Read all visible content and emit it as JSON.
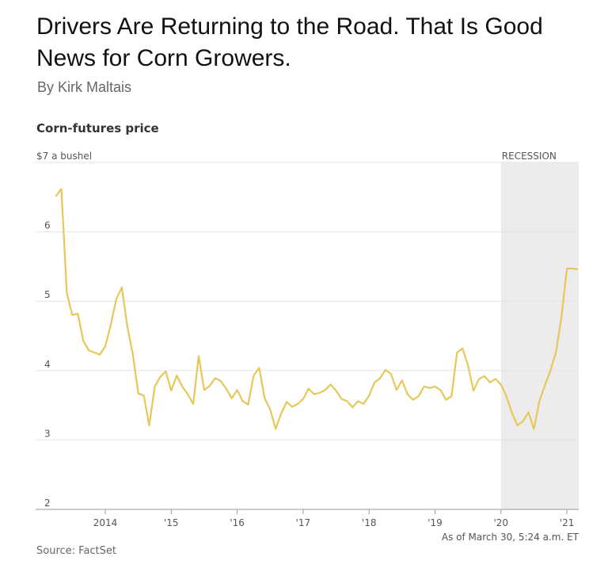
{
  "article": {
    "title": "Drivers Are Returning to the Road. That Is Good News for Corn Growers.",
    "byline": "By Kirk Maltais"
  },
  "chart_data": {
    "type": "line",
    "title": "Corn-futures price",
    "ylabel": "$7 a bushel",
    "ylim": [
      2,
      7
    ],
    "yticks": [
      "2",
      "3",
      "4",
      "5",
      "6",
      "$7 a bushel"
    ],
    "xticks": [
      "2014",
      "'15",
      "'16",
      "'17",
      "'18",
      "'19",
      "'20",
      "'21"
    ],
    "grid": true,
    "line_color": "#e6c85a",
    "shaded_region": {
      "label": "RECESSION",
      "from": "2020-02",
      "to": "2021-03",
      "color": "#ececec"
    },
    "x": [
      "2013-04",
      "2013-05",
      "2013-06",
      "2013-07",
      "2013-08",
      "2013-09",
      "2013-10",
      "2013-11",
      "2013-12",
      "2014-01",
      "2014-02",
      "2014-03",
      "2014-04",
      "2014-05",
      "2014-06",
      "2014-07",
      "2014-08",
      "2014-09",
      "2014-10",
      "2014-11",
      "2014-12",
      "2015-01",
      "2015-02",
      "2015-03",
      "2015-04",
      "2015-05",
      "2015-06",
      "2015-07",
      "2015-08",
      "2015-09",
      "2015-10",
      "2015-11",
      "2015-12",
      "2016-01",
      "2016-02",
      "2016-03",
      "2016-04",
      "2016-05",
      "2016-06",
      "2016-07",
      "2016-08",
      "2016-09",
      "2016-10",
      "2016-11",
      "2016-12",
      "2017-01",
      "2017-02",
      "2017-03",
      "2017-04",
      "2017-05",
      "2017-06",
      "2017-07",
      "2017-08",
      "2017-09",
      "2017-10",
      "2017-11",
      "2017-12",
      "2018-01",
      "2018-02",
      "2018-03",
      "2018-04",
      "2018-05",
      "2018-06",
      "2018-07",
      "2018-08",
      "2018-09",
      "2018-10",
      "2018-11",
      "2018-12",
      "2019-01",
      "2019-02",
      "2019-03",
      "2019-04",
      "2019-05",
      "2019-06",
      "2019-07",
      "2019-08",
      "2019-09",
      "2019-10",
      "2019-11",
      "2019-12",
      "2020-01",
      "2020-02",
      "2020-03",
      "2020-04",
      "2020-05",
      "2020-06",
      "2020-07",
      "2020-08",
      "2020-09",
      "2020-10",
      "2020-11",
      "2020-12",
      "2021-01",
      "2021-02",
      "2021-03"
    ],
    "values": [
      6.51,
      6.62,
      5.12,
      4.8,
      4.82,
      4.43,
      4.29,
      4.26,
      4.23,
      4.35,
      4.66,
      5.03,
      5.2,
      4.64,
      4.24,
      3.67,
      3.64,
      3.21,
      3.77,
      3.91,
      3.99,
      3.71,
      3.93,
      3.77,
      3.66,
      3.52,
      4.21,
      3.72,
      3.78,
      3.89,
      3.85,
      3.74,
      3.6,
      3.72,
      3.56,
      3.51,
      3.93,
      4.04,
      3.6,
      3.44,
      3.16,
      3.38,
      3.55,
      3.48,
      3.52,
      3.59,
      3.74,
      3.66,
      3.68,
      3.72,
      3.8,
      3.71,
      3.59,
      3.56,
      3.47,
      3.56,
      3.52,
      3.64,
      3.83,
      3.89,
      4.01,
      3.95,
      3.72,
      3.86,
      3.66,
      3.58,
      3.63,
      3.77,
      3.75,
      3.77,
      3.72,
      3.58,
      3.63,
      4.26,
      4.32,
      4.08,
      3.71,
      3.88,
      3.92,
      3.83,
      3.88,
      3.8,
      3.63,
      3.39,
      3.21,
      3.27,
      3.4,
      3.16,
      3.56,
      3.79,
      4.0,
      4.26,
      4.77,
      5.47,
      5.47,
      5.46
    ],
    "note": "As of March 30, 5:24 a.m. ET",
    "source": "Source: FactSet"
  }
}
